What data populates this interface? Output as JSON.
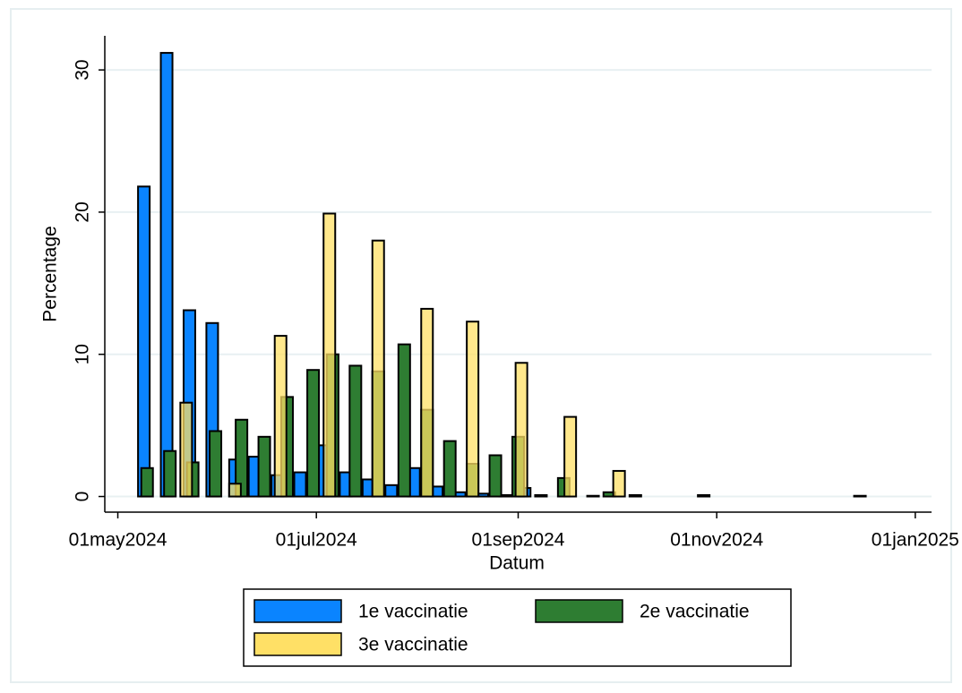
{
  "chart_data": {
    "type": "bar",
    "x_label": "Datum",
    "y_label": "Percentage",
    "xlim": [
      "2024-04-27",
      "2025-01-06"
    ],
    "xticks": [
      {
        "value": "2024-05-01",
        "label": "01may2024"
      },
      {
        "value": "2024-07-01",
        "label": "01jul2024"
      },
      {
        "value": "2024-09-01",
        "label": "01sep2024"
      },
      {
        "value": "2024-11-01",
        "label": "01nov2024"
      },
      {
        "value": "2025-01-01",
        "label": "01jan2025"
      }
    ],
    "ylim": [
      -1.1,
      32.4
    ],
    "yticks": [
      0,
      10,
      20,
      30
    ],
    "grid": true,
    "legend": "bottom",
    "series": [
      {
        "name": "1e vaccinatie",
        "color": "#0a84ff",
        "x": [
          "2024-05-09",
          "2024-05-16",
          "2024-05-23",
          "2024-05-30",
          "2024-06-06",
          "2024-06-12",
          "2024-06-19",
          "2024-06-26",
          "2024-07-03",
          "2024-07-10",
          "2024-07-17",
          "2024-07-24",
          "2024-07-31",
          "2024-08-07",
          "2024-08-14",
          "2024-08-21",
          "2024-08-28",
          "2024-09-03",
          "2024-09-24",
          "2024-12-15"
        ],
        "values": [
          21.8,
          31.2,
          13.1,
          12.2,
          2.6,
          2.8,
          1.5,
          1.7,
          3.6,
          1.7,
          1.2,
          0.8,
          2.0,
          0.7,
          0.3,
          0.2,
          0.1,
          0.6,
          0.05,
          0.05
        ]
      },
      {
        "name": "2e vaccinatie",
        "color": "#2e7d32",
        "x": [
          "2024-05-10",
          "2024-05-17",
          "2024-05-24",
          "2024-05-31",
          "2024-06-08",
          "2024-06-15",
          "2024-06-22",
          "2024-06-30",
          "2024-07-06",
          "2024-07-13",
          "2024-07-20",
          "2024-07-28",
          "2024-08-04",
          "2024-08-11",
          "2024-08-18",
          "2024-08-25",
          "2024-09-01",
          "2024-09-08",
          "2024-09-15",
          "2024-09-29",
          "2024-10-07",
          "2024-10-28"
        ],
        "values": [
          2.0,
          3.2,
          2.4,
          4.6,
          5.4,
          4.2,
          7.0,
          8.9,
          10.0,
          9.2,
          8.8,
          10.7,
          6.1,
          3.9,
          2.3,
          2.9,
          4.2,
          0.1,
          1.3,
          0.3,
          0.1,
          0.1
        ]
      },
      {
        "name": "3e vaccinatie",
        "color": "#ffe066",
        "x": [
          "2024-05-22",
          "2024-06-06",
          "2024-06-20",
          "2024-07-05",
          "2024-07-20",
          "2024-08-04",
          "2024-08-18",
          "2024-09-02",
          "2024-09-17",
          "2024-10-02"
        ],
        "values": [
          6.6,
          0.9,
          11.3,
          19.9,
          18.0,
          13.2,
          12.3,
          9.4,
          5.6,
          1.8
        ]
      }
    ]
  }
}
